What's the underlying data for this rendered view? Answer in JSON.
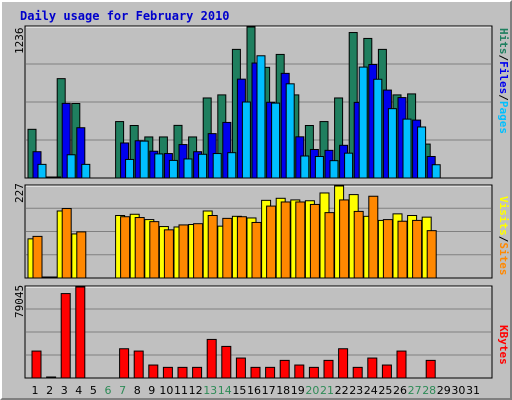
{
  "title": "Daily usage for February 2010",
  "legend": {
    "hits": "Hits",
    "files": "Files",
    "pages": "Pages",
    "visits": "Visits",
    "sites": "Sites",
    "kbytes": "KBytes",
    "sep": "/"
  },
  "colors": {
    "hits": "#1f7f5f",
    "files": "#0000ee",
    "pages": "#00bfff",
    "visits": "#ffff00",
    "sites": "#ff8800",
    "kbytes": "#ff0000",
    "weekday_label": "#000000",
    "weekend_label": "#2e8b57"
  },
  "chart_data": [
    {
      "type": "bar",
      "title": "Daily usage for February 2010",
      "ylabel": "1236",
      "ylim": [
        0,
        1236
      ],
      "categories": [
        "1",
        "2",
        "3",
        "4",
        "5",
        "6",
        "7",
        "8",
        "9",
        "10",
        "11",
        "12",
        "13",
        "14",
        "15",
        "16",
        "17",
        "18",
        "19",
        "20",
        "21",
        "22",
        "23",
        "24",
        "25",
        "26",
        "27",
        "28",
        "29",
        "30",
        "31"
      ],
      "weekend_days": [
        "6",
        "7",
        "13",
        "14",
        "20",
        "21",
        "27",
        "28"
      ],
      "series": [
        {
          "name": "Hits",
          "values": [
            404,
            15,
            816,
            614,
            0,
            0,
            467,
            435,
            342,
            342,
            436,
            342,
            659,
            684,
            1054,
            1236,
            908,
            1013,
            684,
            435,
            467,
            659,
            1191,
            1143,
            1054,
            684,
            692,
            0,
            0,
            0,
            0
          ]
        },
        {
          "name": "Files",
          "values": [
            222,
            7,
            615,
            417,
            0,
            0,
            293,
            311,
            226,
            207,
            280,
            222,
            369,
            460,
            812,
            943,
            624,
            859,
            343,
            240,
            233,
            274,
            623,
            931,
            723,
            662,
            479,
            0,
            0,
            0,
            0
          ]
        },
        {
          "name": "Pages",
          "values": [
            119,
            4,
            197,
            119,
            0,
            0,
            159,
            308,
            204,
            151,
            163,
            201,
            207,
            214,
            626,
            1002,
            617,
            774,
            187,
            183,
            149,
            210,
            910,
            811,
            572,
            487,
            423,
            0,
            0,
            0,
            0
          ]
        }
      ],
      "partial_days": {
        "28": {
          "Hits": 284,
          "Files": 183,
          "Pages": 116
        }
      }
    },
    {
      "type": "bar",
      "ylabel": "227",
      "ylim": [
        0,
        227
      ],
      "categories": [
        "1",
        "2",
        "3",
        "4",
        "5",
        "6",
        "7",
        "8",
        "9",
        "10",
        "11",
        "12",
        "13",
        "14",
        "15",
        "16",
        "17",
        "18",
        "19",
        "20",
        "21",
        "22",
        "23",
        "24",
        "25",
        "26",
        "27",
        "28",
        "29",
        "30",
        "31"
      ],
      "series": [
        {
          "name": "Visits",
          "values": [
            98,
            4,
            166,
            110,
            0,
            0,
            155,
            158,
            145,
            128,
            127,
            133,
            166,
            129,
            153,
            149,
            192,
            197,
            193,
            191,
            210,
            227,
            206,
            153,
            143,
            159,
            155,
            0,
            0,
            0,
            0
          ]
        },
        {
          "name": "Sites",
          "values": [
            104,
            3,
            172,
            115,
            0,
            0,
            152,
            150,
            140,
            120,
            132,
            135,
            155,
            148,
            152,
            138,
            178,
            188,
            188,
            182,
            162,
            193,
            165,
            202,
            145,
            141,
            143,
            0,
            0,
            0,
            0
          ]
        }
      ],
      "partial_days": {
        "28": {
          "Visits": 151,
          "Sites": 118
        }
      }
    },
    {
      "type": "bar",
      "ylabel": "79045",
      "ylim": [
        0,
        79045
      ],
      "categories": [
        "1",
        "2",
        "3",
        "4",
        "5",
        "6",
        "7",
        "8",
        "9",
        "10",
        "11",
        "12",
        "13",
        "14",
        "15",
        "16",
        "17",
        "18",
        "19",
        "20",
        "21",
        "22",
        "23",
        "24",
        "25",
        "26",
        "27",
        "28",
        "29",
        "30",
        "31"
      ],
      "series": [
        {
          "name": "KBytes",
          "values": [
            24000,
            560,
            73400,
            79045,
            0,
            0,
            26000,
            24000,
            12000,
            10000,
            10000,
            10000,
            34000,
            28000,
            18000,
            10000,
            10000,
            16000,
            12000,
            10000,
            16000,
            26000,
            10000,
            18000,
            12000,
            24000,
            0,
            0,
            0,
            0,
            0
          ]
        }
      ],
      "partial_days": {
        "28": {
          "KBytes": 16000
        }
      }
    }
  ]
}
